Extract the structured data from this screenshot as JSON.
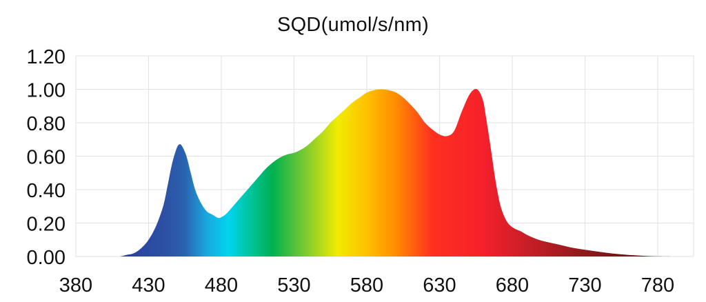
{
  "chart_data": {
    "type": "area",
    "title": "SQD(umol/s/nm)",
    "xlabel": "",
    "ylabel": "",
    "xlim": [
      380,
      790
    ],
    "ylim": [
      0,
      1.2
    ],
    "grid": true,
    "legend": "none",
    "x_ticks": [
      "380",
      "430",
      "480",
      "530",
      "580",
      "630",
      "680",
      "730",
      "780"
    ],
    "y_ticks": [
      "0.00",
      "0.20",
      "0.40",
      "0.60",
      "0.80",
      "1.00",
      "1.20"
    ],
    "series": [
      {
        "x": [
          380,
          390,
          400,
          405,
          410,
          415,
          420,
          425,
          430,
          435,
          440,
          443,
          446,
          449,
          451,
          453,
          456,
          459,
          462,
          466,
          470,
          474,
          478,
          481,
          484,
          488,
          492,
          496,
          500,
          505,
          510,
          515,
          520,
          525,
          530,
          535,
          540,
          545,
          550,
          555,
          560,
          565,
          570,
          575,
          580,
          585,
          590,
          595,
          599,
          603,
          607,
          611,
          615,
          620,
          625,
          630,
          635,
          640,
          645,
          650,
          654,
          657,
          660,
          662,
          664,
          666,
          668,
          670,
          672,
          675,
          678,
          682,
          686,
          690,
          695,
          700,
          710,
          720,
          730,
          740,
          750,
          760,
          770,
          780,
          790
        ],
        "values": [
          0.0,
          0.0,
          0.0,
          0.0,
          0.0,
          0.01,
          0.02,
          0.05,
          0.1,
          0.18,
          0.3,
          0.42,
          0.55,
          0.64,
          0.67,
          0.66,
          0.6,
          0.5,
          0.4,
          0.32,
          0.27,
          0.25,
          0.23,
          0.24,
          0.26,
          0.3,
          0.34,
          0.38,
          0.42,
          0.47,
          0.52,
          0.56,
          0.59,
          0.61,
          0.62,
          0.64,
          0.67,
          0.71,
          0.75,
          0.8,
          0.84,
          0.88,
          0.92,
          0.95,
          0.98,
          0.995,
          1.0,
          0.995,
          0.985,
          0.965,
          0.935,
          0.9,
          0.86,
          0.8,
          0.76,
          0.73,
          0.72,
          0.75,
          0.86,
          0.96,
          1.0,
          0.99,
          0.93,
          0.83,
          0.72,
          0.6,
          0.48,
          0.38,
          0.3,
          0.23,
          0.19,
          0.165,
          0.15,
          0.13,
          0.11,
          0.095,
          0.075,
          0.055,
          0.04,
          0.028,
          0.017,
          0.009,
          0.004,
          0.001,
          0.0
        ]
      }
    ],
    "spectrum_colors": [
      {
        "nm": 410,
        "color": "#2a3fa0"
      },
      {
        "nm": 440,
        "color": "#2d4fa3"
      },
      {
        "nm": 455,
        "color": "#2a62b0"
      },
      {
        "nm": 470,
        "color": "#1aa8df"
      },
      {
        "nm": 485,
        "color": "#00d4ee"
      },
      {
        "nm": 500,
        "color": "#00c49a"
      },
      {
        "nm": 515,
        "color": "#00b050"
      },
      {
        "nm": 535,
        "color": "#6dc636"
      },
      {
        "nm": 560,
        "color": "#f0ec00"
      },
      {
        "nm": 580,
        "color": "#ffc000"
      },
      {
        "nm": 600,
        "color": "#ff8c00"
      },
      {
        "nm": 625,
        "color": "#ff3020"
      },
      {
        "nm": 660,
        "color": "#f5202a"
      },
      {
        "nm": 690,
        "color": "#c81e28"
      },
      {
        "nm": 730,
        "color": "#8e1a1a"
      },
      {
        "nm": 780,
        "color": "#5c1010"
      }
    ],
    "colors": {
      "grid": "#e2e2e2",
      "text": "#111111"
    }
  }
}
